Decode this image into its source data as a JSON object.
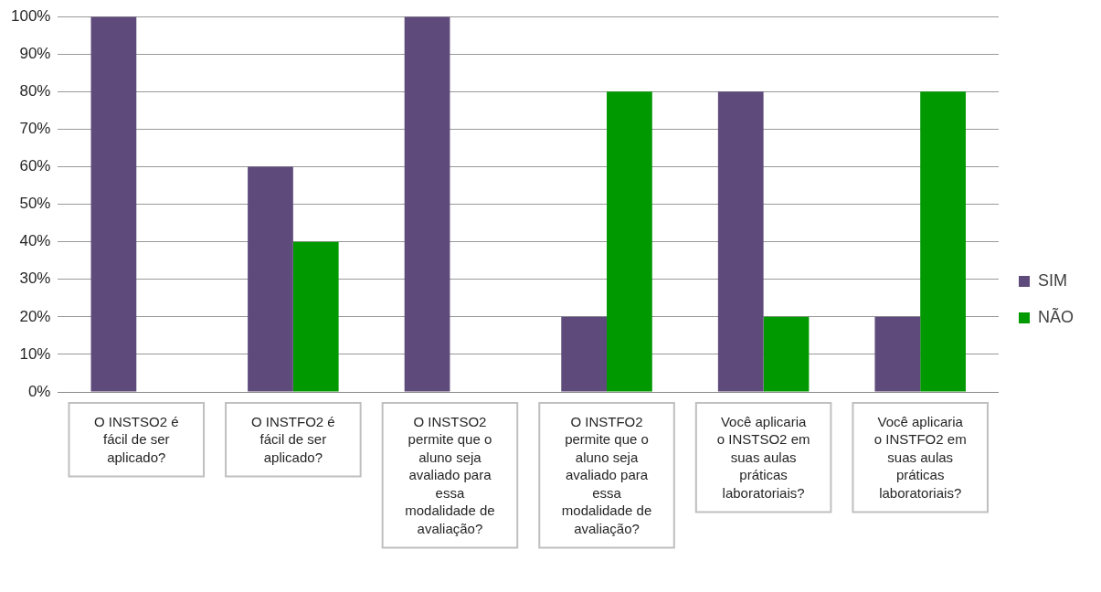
{
  "chart_data": {
    "type": "bar",
    "categories": [
      "O INSTSO2 é fácil de ser aplicado?",
      "O INSTFO2 é fácil de ser aplicado?",
      "O INSTSO2 permite que o aluno seja avaliado para essa modalidade de avaliação?",
      "O INSTFO2 permite que o aluno seja avaliado para essa modalidade de avaliação?",
      "Você aplicaria o INSTSO2 em suas aulas práticas laboratoriais?",
      "Você aplicaria o INSTFO2 em suas aulas práticas laboratoriais?"
    ],
    "series": [
      {
        "name": "SIM",
        "color": "#5f4b7b",
        "values": [
          100,
          60,
          100,
          20,
          80,
          20
        ]
      },
      {
        "name": "NÃO",
        "color": "#009900",
        "values": [
          0,
          40,
          0,
          80,
          20,
          80
        ]
      }
    ],
    "ylim": [
      0,
      100
    ],
    "yticks": [
      {
        "value": 0,
        "label": "0%"
      },
      {
        "value": 10,
        "label": "10%"
      },
      {
        "value": 20,
        "label": "20%"
      },
      {
        "value": 30,
        "label": "30%"
      },
      {
        "value": 40,
        "label": "40%"
      },
      {
        "value": 50,
        "label": "50%"
      },
      {
        "value": 60,
        "label": "60%"
      },
      {
        "value": 70,
        "label": "70%"
      },
      {
        "value": 80,
        "label": "80%"
      },
      {
        "value": 90,
        "label": "90%"
      },
      {
        "value": 100,
        "label": "100%"
      }
    ],
    "grid": "y",
    "legend": "right"
  }
}
